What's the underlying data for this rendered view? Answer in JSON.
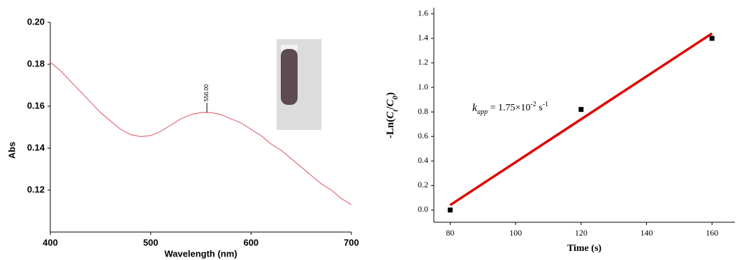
{
  "chart_data": [
    {
      "type": "line",
      "x_label": "Wavelength (nm)",
      "y_label": "Abs",
      "x": [
        400,
        410,
        420,
        430,
        440,
        450,
        460,
        470,
        480,
        490,
        500,
        510,
        520,
        530,
        540,
        550,
        556,
        560,
        570,
        580,
        590,
        600,
        610,
        620,
        630,
        640,
        650,
        660,
        670,
        680,
        690,
        700
      ],
      "values": [
        0.181,
        0.177,
        0.172,
        0.167,
        0.162,
        0.157,
        0.153,
        0.149,
        0.1465,
        0.1455,
        0.146,
        0.148,
        0.151,
        0.154,
        0.156,
        0.157,
        0.157,
        0.157,
        0.156,
        0.154,
        0.152,
        0.149,
        0.146,
        0.142,
        0.139,
        0.135,
        0.131,
        0.127,
        0.123,
        0.12,
        0.116,
        0.113
      ],
      "color": "#e0707c",
      "xlim": [
        400,
        700
      ],
      "ylim": [
        0.1,
        0.2
      ],
      "xticks": [
        400,
        500,
        600,
        700
      ],
      "yticks": [
        0.12,
        0.14,
        0.16,
        0.18,
        {
          "value": 0.2,
          "label": "0.20"
        }
      ],
      "annotation": {
        "text": "556.00",
        "x": 556,
        "y": 0.157
      }
    },
    {
      "type": "scatter",
      "x_label": "Time (s)",
      "y_label": [
        "-Ln(",
        "C",
        "t",
        "/",
        "C",
        "0",
        ")"
      ],
      "x": [
        80,
        120,
        160
      ],
      "values": [
        0,
        0.82,
        1.4
      ],
      "color": "#000000",
      "fit": {
        "x": [
          80,
          160
        ],
        "values": [
          0.04,
          1.44
        ],
        "color": "#e00000"
      },
      "xlim": [
        75,
        167
      ],
      "ylim": [
        -0.1,
        1.65
      ],
      "xticks": [
        80,
        100,
        120,
        140,
        160
      ],
      "yticks": [
        {
          "value": 0,
          "label": "0.0"
        },
        0.2,
        0.4,
        0.6,
        0.8,
        {
          "value": 1,
          "label": "1.0"
        },
        1.2,
        1.4,
        1.6
      ],
      "annotation": [
        "k",
        "app",
        " = 1.75×10",
        "-2",
        " s",
        "-1"
      ]
    }
  ]
}
